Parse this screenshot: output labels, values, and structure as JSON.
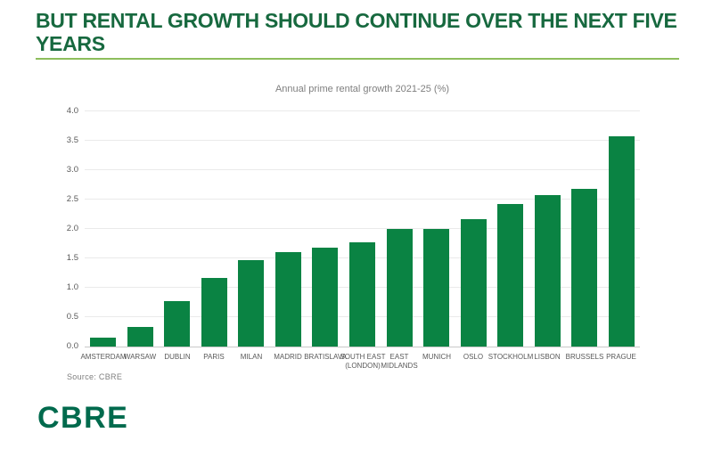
{
  "page": {
    "title": "BUT RENTAL GROWTH SHOULD CONTINUE OVER THE NEXT FIVE YEARS",
    "source_label": "Source: CBRE",
    "logo_text": "CBRE"
  },
  "colors": {
    "title_green": "#17693F",
    "underline_green": "#8DBE5C",
    "bar_green": "#0A8343",
    "logo_green": "#006A4D",
    "axis_text": "#595959",
    "chart_title_gray": "#7F7F7F",
    "gridline": "#EAEAEA",
    "axis_line": "#C9C9C9"
  },
  "chart_data": {
    "type": "bar",
    "title": "Annual prime rental growth 2021-25 (%)",
    "categories": [
      "AMSTERDAM",
      "WARSAW",
      "DUBLIN",
      "PARIS",
      "MILAN",
      "MADRID",
      "BRATISLAVA",
      "SOUTH EAST\n(LONDON)",
      "EAST\nMIDLANDS",
      "MUNICH",
      "OSLO",
      "STOCKHOLM",
      "LISBON",
      "BRUSSELS",
      "PRAGUE"
    ],
    "values": [
      0.15,
      0.33,
      0.77,
      1.16,
      1.47,
      1.61,
      1.68,
      1.78,
      2.0,
      2.0,
      2.17,
      2.43,
      2.57,
      2.68,
      3.57
    ],
    "xlabel": "",
    "ylabel": "",
    "ylim": [
      0,
      4.0
    ],
    "ytick_step": 0.5,
    "grid": "horizontal",
    "legend": "none"
  }
}
